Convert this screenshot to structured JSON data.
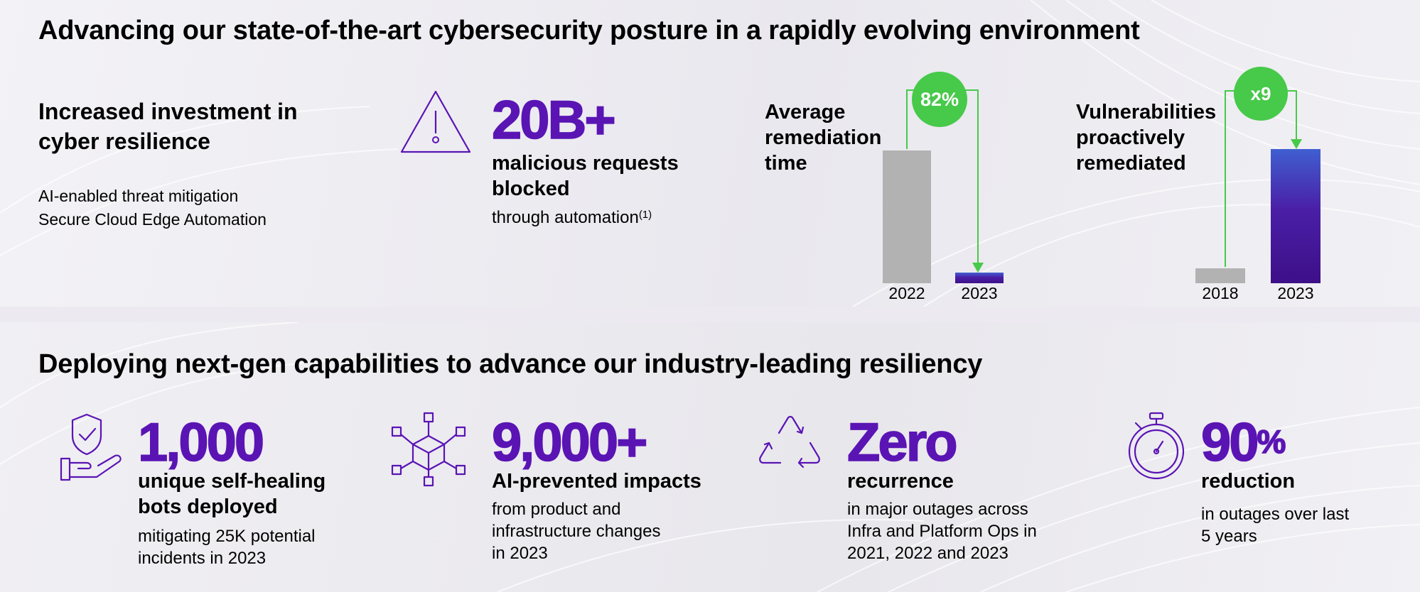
{
  "top": {
    "title": "Advancing our state-of-the-art cybersecurity posture in a rapidly evolving environment",
    "investment": {
      "heading_line1": "Increased investment in",
      "heading_line2": "cyber resilience",
      "items": [
        "AI-enabled threat mitigation",
        "Secure Cloud Edge Automation"
      ]
    },
    "malicious": {
      "icon": "warning-triangle-icon",
      "value": "20B+",
      "label_line1": "malicious requests",
      "label_line2": "blocked",
      "note": "through automation",
      "footnote": "(1)"
    },
    "remediation": {
      "label_line1": "Average",
      "label_line2": "remediation",
      "label_line3": "time",
      "badge": "82%",
      "categories": [
        "2022",
        "2023"
      ]
    },
    "vulnerabilities": {
      "label_line1": "Vulnerabilities",
      "label_line2": "proactively",
      "label_line3": "remediated",
      "badge": "x9",
      "categories": [
        "2018",
        "2023"
      ]
    }
  },
  "bottom": {
    "title": "Deploying next-gen capabilities to advance our industry-leading resiliency",
    "stats": [
      {
        "icon": "shield-hand-check-icon",
        "value": "1,000",
        "label_line1": "unique self-healing",
        "label_line2": "bots deployed",
        "desc": [
          "mitigating 25K potential",
          "incidents in 2023"
        ]
      },
      {
        "icon": "network-cube-icon",
        "value": "9,000+",
        "label_line1": "AI-prevented impacts",
        "desc": [
          "from product and",
          "infrastructure changes",
          "in 2023"
        ]
      },
      {
        "icon": "recycle-icon",
        "value": "Zero",
        "label_line1": "recurrence",
        "desc": [
          "in major outages across",
          "Infra and Platform Ops in",
          "2021, 2022 and 2023"
        ]
      },
      {
        "icon": "stopwatch-icon",
        "value": "90",
        "value_suffix": "%",
        "label_line1": "reduction",
        "desc": [
          "in outages over last",
          "5 years"
        ]
      }
    ]
  },
  "colors": {
    "accent_purple": "#5a14b4",
    "badge_green": "#47c94a",
    "bar_gray": "#b2b2b2"
  }
}
